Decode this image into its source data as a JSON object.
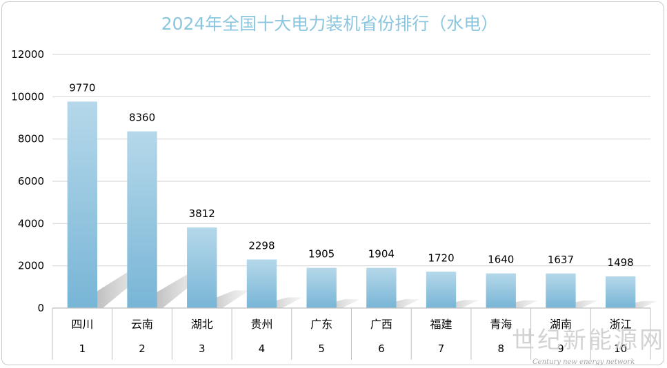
{
  "chart_data": {
    "type": "bar",
    "title": "2024年全国十大电力装机省份排行（水电）",
    "categories": [
      "四川",
      "云南",
      "湖北",
      "贵州",
      "广东",
      "广西",
      "福建",
      "青海",
      "湖南",
      "浙江"
    ],
    "ranks": [
      "1",
      "2",
      "3",
      "4",
      "5",
      "6",
      "7",
      "8",
      "9",
      "10"
    ],
    "values": [
      9770,
      8360,
      3812,
      2298,
      1905,
      1904,
      1720,
      1640,
      1637,
      1498
    ],
    "ylim": [
      0,
      12000
    ],
    "yticks": [
      "0",
      "2000",
      "4000",
      "6000",
      "8000",
      "10000",
      "12000"
    ],
    "grid": true,
    "legend": "none",
    "bar_color_top": "#b5d8ea",
    "bar_color_bottom": "#78b5d6",
    "title_color": "#8cc6de"
  },
  "watermark": {
    "cn": "世纪新能源网",
    "en": "Century new energy network"
  }
}
